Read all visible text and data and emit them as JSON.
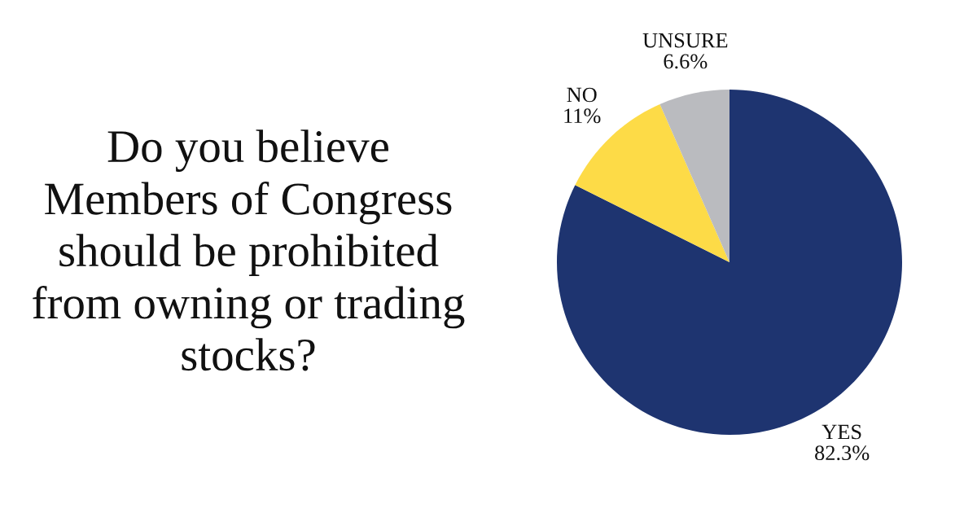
{
  "chart_data": {
    "type": "pie",
    "title": "Do you believe\nMembers of Congress\nshould be prohibited\nfrom owning or trading\nstocks?",
    "categories": [
      "YES",
      "NO",
      "UNSURE"
    ],
    "values": [
      82.3,
      11,
      6.6
    ],
    "value_labels": [
      "82.3%",
      "11%",
      "6.6%"
    ],
    "colors": [
      "#1e3470",
      "#fddb47",
      "#babbbf"
    ]
  }
}
